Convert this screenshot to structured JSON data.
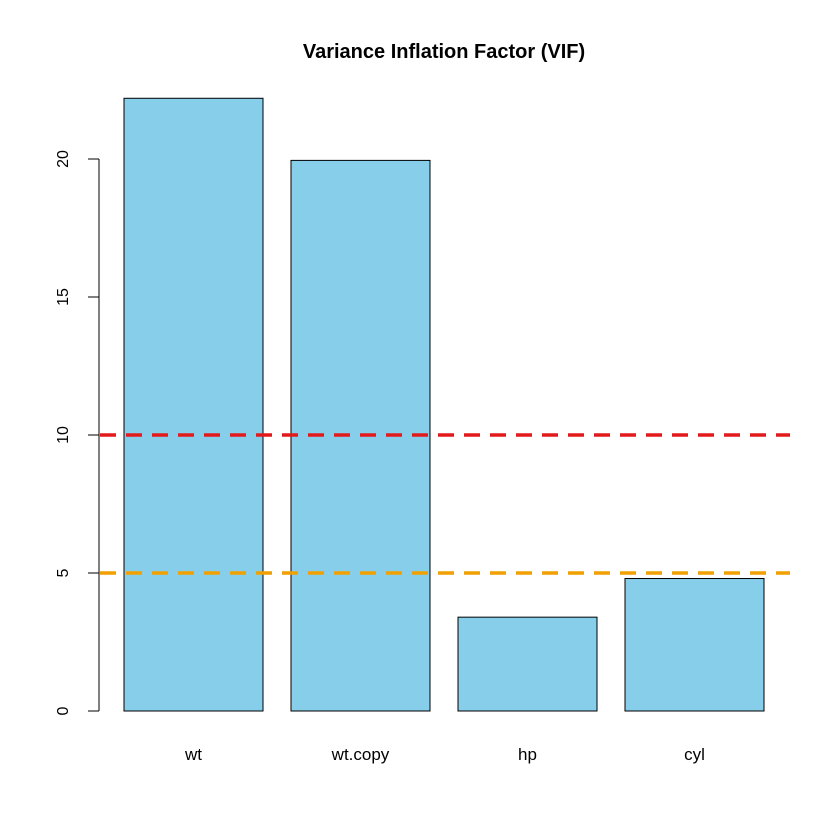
{
  "chart_data": {
    "type": "bar",
    "title": "Variance Inflation Factor (VIF)",
    "xlabel": "",
    "ylabel": "",
    "categories": [
      "wt",
      "wt.copy",
      "hp",
      "cyl"
    ],
    "values": [
      22.2,
      19.95,
      3.4,
      4.8
    ],
    "ylim": [
      0,
      22.2
    ],
    "yticks": [
      0,
      5,
      10,
      15,
      20
    ],
    "bar_color": "#87CEEB",
    "reference_lines": [
      {
        "y": 10,
        "color": "#E31A1C",
        "style": "dashed"
      },
      {
        "y": 5,
        "color": "#F0A000",
        "style": "dashed"
      }
    ],
    "grid": false,
    "legend": "none"
  }
}
